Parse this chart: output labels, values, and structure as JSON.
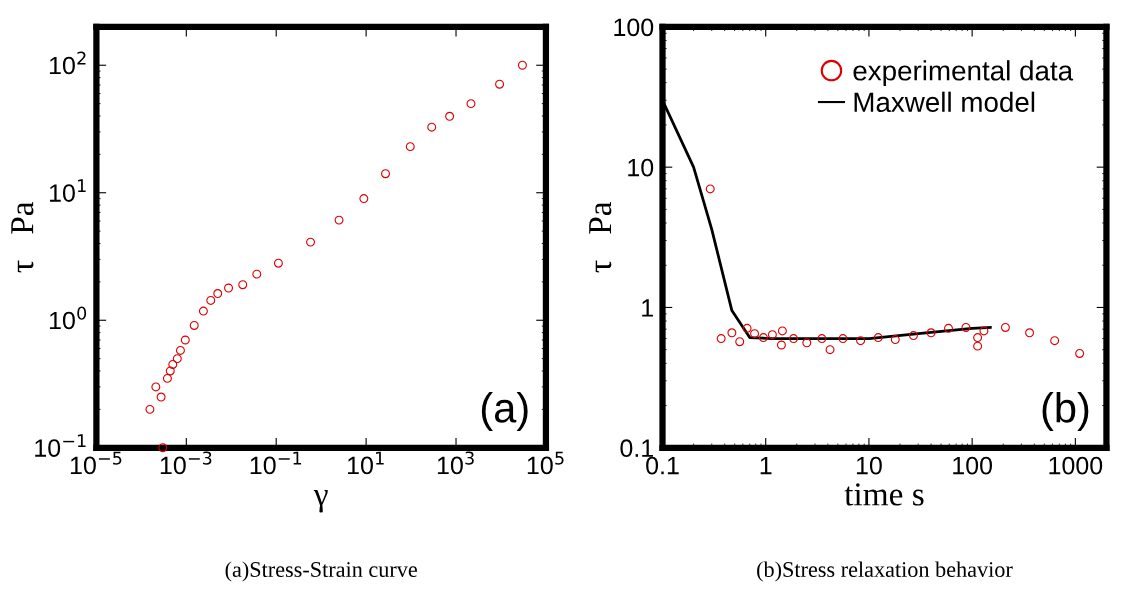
{
  "chart_data": [
    {
      "type": "scatter",
      "xlabel": "γ",
      "ylabel": "τ   Pa",
      "log": "xy",
      "marker": "circle",
      "grid": false,
      "legend": false,
      "xlim": [
        1e-05,
        100000
      ],
      "ylim": [
        0.1,
        200
      ],
      "xticks": [
        {
          "value": 1e-05,
          "label": "10$^{−5}$"
        },
        {
          "value": 0.001,
          "label": "10$^{−3}$"
        },
        {
          "value": 0.1,
          "label": "10$^{−1}$"
        },
        {
          "value": 10,
          "label": "10$^{1}$"
        },
        {
          "value": 1000,
          "label": "10$^{3}$"
        },
        {
          "value": 100000,
          "label": "10$^{5}$"
        }
      ],
      "yticks": [
        {
          "value": 0.1,
          "label": "10$^{−1}$"
        },
        {
          "value": 1,
          "label": "10$^{0}$"
        },
        {
          "value": 10,
          "label": "10$^{1}$"
        },
        {
          "value": 100,
          "label": "10$^{2}$"
        }
      ],
      "annotations": [
        "(a)",
        "(a)Stress-Strain curve"
      ],
      "series": [
        {
          "color": "#dd0000",
          "x": [
            0.000155,
            0.00021,
            0.000275,
            0.0003,
            0.00038,
            0.00044,
            0.0005,
            0.00063,
            0.00074,
            0.00095,
            0.0015,
            0.0024,
            0.0035,
            0.005,
            0.0087,
            0.018,
            0.037,
            0.112,
            0.58,
            2.5,
            8.9,
            27,
            96,
            288,
            720,
            2150,
            9300,
            30000
          ],
          "values": [
            0.2,
            0.3,
            0.25,
            0.1,
            0.35,
            0.4,
            0.45,
            0.5,
            0.58,
            0.7,
            0.91,
            1.18,
            1.43,
            1.62,
            1.79,
            1.9,
            2.3,
            2.8,
            4.1,
            6.1,
            9.0,
            14.1,
            23,
            32.7,
            39.8,
            50,
            71,
            100
          ]
        }
      ]
    },
    {
      "type": "scatter",
      "xlabel": "time s",
      "ylabel": "τ   Pa",
      "log": "xy",
      "marker": "circle",
      "grid": false,
      "legend": "top right",
      "xlim": [
        0.1,
        2000
      ],
      "ylim": [
        0.1,
        100
      ],
      "xticks": [
        0.1,
        1,
        10,
        100,
        1000
      ],
      "yticks": [
        0.1,
        1,
        10,
        100
      ],
      "annotations": [
        "(b)",
        "(b)Stress relaxation behavior"
      ],
      "series": [
        {
          "name": "experimental data",
          "color": "#dd0000",
          "x": [
            0.29,
            0.37,
            0.47,
            0.56,
            0.66,
            0.78,
            0.95,
            1.16,
            1.45,
            1.42,
            1.86,
            2.5,
            3.5,
            4.2,
            5.6,
            8.3,
            12.3,
            18,
            27,
            40,
            59,
            87,
            113,
            113,
            130,
            210,
            360,
            630,
            1100
          ],
          "values": [
            7.0,
            0.6,
            0.66,
            0.57,
            0.71,
            0.65,
            0.61,
            0.64,
            0.68,
            0.54,
            0.6,
            0.56,
            0.6,
            0.5,
            0.6,
            0.58,
            0.61,
            0.59,
            0.63,
            0.66,
            0.71,
            0.72,
            0.53,
            0.61,
            0.68,
            0.72,
            0.66,
            0.58,
            0.47
          ]
        },
        {
          "name": "Maxwell model",
          "type": "line",
          "marker": "none",
          "color": "#000000",
          "x": [
            0.1,
            0.2,
            0.3,
            0.47,
            0.7,
            1.15,
            3,
            10,
            30,
            100,
            150
          ],
          "values": [
            30,
            10,
            3.6,
            0.95,
            0.61,
            0.6,
            0.6,
            0.6,
            0.65,
            0.71,
            0.72
          ]
        }
      ]
    }
  ]
}
